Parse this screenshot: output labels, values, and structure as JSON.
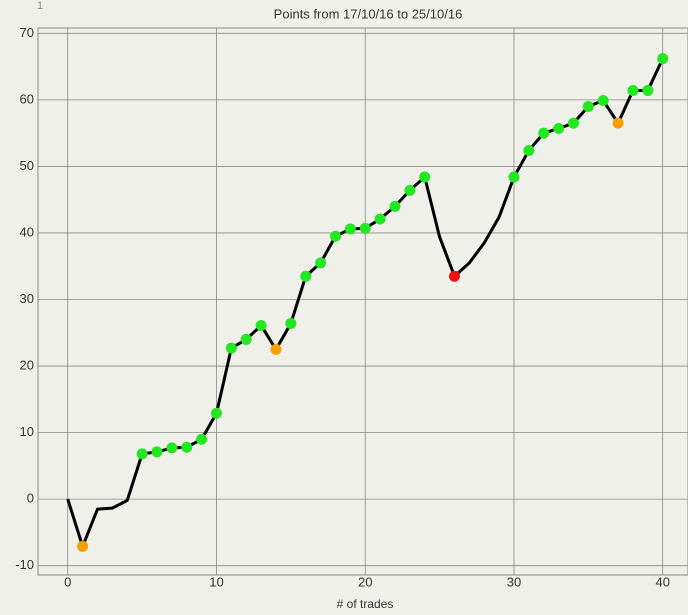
{
  "chart_data": {
    "type": "line",
    "title": "Points from 17/10/16 to 25/10/16",
    "corner_label": "1",
    "x_label": "# of trades",
    "x": [
      0,
      1,
      2,
      3,
      4,
      5,
      6,
      7,
      8,
      9,
      10,
      11,
      12,
      13,
      14,
      15,
      16,
      17,
      18,
      19,
      20,
      21,
      22,
      23,
      24,
      25,
      26,
      27,
      28,
      29,
      30,
      31,
      32,
      33,
      34,
      35,
      36,
      37,
      38,
      39,
      40
    ],
    "series": [
      {
        "color": "#000000",
        "values": [
          0,
          -7.1,
          -1.5,
          -1.35,
          -0.2,
          6.8,
          7.1,
          7.7,
          7.8,
          9.0,
          12.9,
          22.7,
          24.0,
          26.1,
          22.5,
          26.4,
          33.5,
          35.5,
          39.5,
          40.6,
          40.7,
          42.1,
          44.0,
          46.4,
          48.4,
          39.4,
          33.5,
          35.5,
          38.5,
          42.4,
          48.4,
          52.4,
          55.0,
          55.7,
          56.5,
          59.0,
          59.9,
          56.5,
          61.4,
          61.4,
          66.2
        ],
        "marker_colors": [
          null,
          "#f5a000",
          null,
          null,
          null,
          "#22e822",
          "#22e822",
          "#22e822",
          "#22e822",
          "#22e822",
          "#22e822",
          "#22e822",
          "#22e822",
          "#22e822",
          "#f5a000",
          "#22e822",
          "#22e822",
          "#22e822",
          "#22e822",
          "#22e822",
          "#22e822",
          "#22e822",
          "#22e822",
          "#22e822",
          "#22e822",
          null,
          "#ee1111",
          null,
          null,
          null,
          "#22e822",
          "#22e822",
          "#22e822",
          "#22e822",
          "#22e822",
          "#22e822",
          "#22e822",
          "#f5a000",
          "#22e822",
          "#22e822",
          "#22e822"
        ]
      }
    ],
    "xlim": [
      -2,
      41.7
    ],
    "ylim": [
      -11.4,
      70.8
    ],
    "xticks": [
      0,
      10,
      20,
      30,
      40
    ],
    "yticks": [
      -10,
      0,
      10,
      20,
      30,
      40,
      50,
      60,
      70
    ],
    "grid": true
  }
}
